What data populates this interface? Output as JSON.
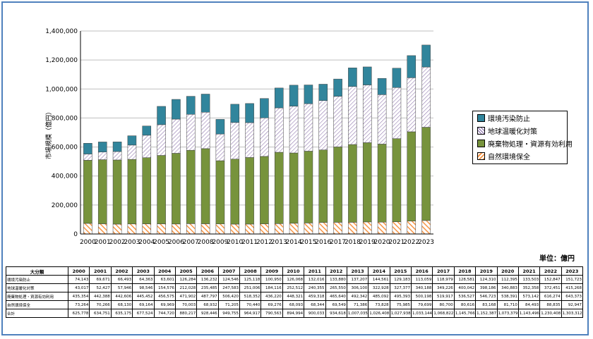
{
  "chart_data": {
    "type": "bar",
    "stacked": true,
    "ylabel": "市場規模（億円）",
    "ylim": [
      0,
      1400000
    ],
    "yticks": [
      "0",
      "200,000",
      "400,000",
      "600,000",
      "800,000",
      "1,000,000",
      "1,200,000",
      "1,400,000"
    ],
    "grid": true,
    "legend_position": "right",
    "categories": [
      "2000",
      "2001",
      "2002",
      "2003",
      "2004",
      "2005",
      "2006",
      "2007",
      "2008",
      "2009",
      "2010",
      "2011",
      "2012",
      "2013",
      "2014",
      "2015",
      "2016",
      "2017",
      "2018",
      "2019",
      "2020",
      "2021",
      "2022",
      "2023"
    ],
    "series": [
      {
        "name": "自然環境保全",
        "color": "#f79646",
        "pattern": "hatch",
        "values": [
          73264,
          70266,
          68130,
          69164,
          69969,
          70003,
          68932,
          71205,
          70440,
          69276,
          68093,
          68344,
          69549,
          71386,
          73828,
          75985,
          79699,
          80700,
          80616,
          83168,
          81710,
          84493,
          88835,
          92947
        ]
      },
      {
        "name": "廃棄物処理・資源有効利用",
        "color": "#77933c",
        "pattern": "solid",
        "values": [
          435354,
          442388,
          442606,
          445452,
          456575,
          471902,
          487797,
          506420,
          518352,
          436220,
          448321,
          459318,
          465640,
          492342,
          485092,
          495393,
          500198,
          519917,
          536527,
          546723,
          538391,
          573142,
          616274,
          643373
        ]
      },
      {
        "name": "地球温暖化対策",
        "color": "#ccc0da",
        "pattern": "diag",
        "values": [
          43017,
          52427,
          57946,
          98546,
          154576,
          212028,
          235485,
          247583,
          251006,
          184116,
          252512,
          240355,
          265550,
          306100,
          322928,
          327377,
          340188,
          349226,
          400042,
          398186,
          340883,
          352358,
          372451,
          415268
        ]
      },
      {
        "name": "環境汚染防止",
        "color": "#31859c",
        "pattern": "solid",
        "values": [
          74143,
          69671,
          66493,
          64363,
          63601,
          126284,
          136232,
          124546,
          125118,
          100950,
          126068,
          132016,
          133880,
          137207,
          144561,
          129183,
          113059,
          118979,
          128581,
          124310,
          112395,
          133503,
          152847,
          151723
        ]
      }
    ]
  },
  "legend": {
    "items": [
      {
        "label": "環境汚染防止",
        "color": "#31859c"
      },
      {
        "label": "地球温暖化対策",
        "color": "#ccc0da"
      },
      {
        "label": "廃棄物処理・資源有効利用",
        "color": "#77933c"
      },
      {
        "label": "自然環境保全",
        "color": "#f79646"
      }
    ]
  },
  "unit_label": "単位：億円",
  "table": {
    "header_label": "大分類",
    "years": [
      "2000",
      "2001",
      "2002",
      "2003",
      "2004",
      "2005",
      "2006",
      "2007",
      "2008",
      "2009",
      "2010",
      "2011",
      "2012",
      "2013",
      "2014",
      "2015",
      "2016",
      "2017",
      "2018",
      "2019",
      "2020",
      "2021",
      "2022",
      "2023"
    ],
    "rows": [
      {
        "label": "環境汚染防止",
        "cells": [
          "74,143",
          "69,671",
          "66,493",
          "64,363",
          "63,601",
          "126,284",
          "136,232",
          "124,546",
          "125,118",
          "100,950",
          "126,068",
          "132,016",
          "133,880",
          "137,207",
          "144,561",
          "129,183",
          "113,059",
          "118,979",
          "128,581",
          "124,310",
          "112,395",
          "133,503",
          "152,847",
          "151,723"
        ]
      },
      {
        "label": "地球温暖化対策",
        "cells": [
          "43,017",
          "52,427",
          "57,946",
          "98,546",
          "154,576",
          "212,028",
          "235,485",
          "247,583",
          "251,006",
          "184,116",
          "252,512",
          "240,355",
          "265,550",
          "306,100",
          "322,928",
          "327,377",
          "340,188",
          "349,226",
          "400,042",
          "398,186",
          "340,883",
          "352,358",
          "372,451",
          "415,268"
        ]
      },
      {
        "label": "廃棄物処理・資源有効利用",
        "cells": [
          "435,354",
          "442,388",
          "442,606",
          "445,452",
          "456,575",
          "471,902",
          "487,797",
          "506,420",
          "518,352",
          "436,220",
          "448,321",
          "459,318",
          "465,640",
          "492,342",
          "485,092",
          "495,393",
          "500,198",
          "519,917",
          "536,527",
          "546,723",
          "538,391",
          "573,142",
          "616,274",
          "643,373"
        ]
      },
      {
        "label": "自然環境保全",
        "cells": [
          "73,264",
          "70,266",
          "68,130",
          "69,164",
          "69,969",
          "70,003",
          "68,932",
          "71,205",
          "70,440",
          "69,276",
          "68,093",
          "68,344",
          "69,549",
          "71,386",
          "73,828",
          "75,985",
          "79,699",
          "80,700",
          "80,616",
          "83,168",
          "81,710",
          "84,493",
          "88,835",
          "92,947"
        ]
      },
      {
        "label": "合計",
        "cells": [
          "625,778",
          "634,751",
          "635,175",
          "677,524",
          "744,720",
          "880,217",
          "928,446",
          "949,755",
          "964,917",
          "790,563",
          "894,994",
          "900,033",
          "934,618",
          "1,007,035",
          "1,026,408",
          "1,027,938",
          "1,033,144",
          "1,068,822",
          "1,145,766",
          "1,152,387",
          "1,073,379",
          "1,143,496",
          "1,230,408",
          "1,303,312"
        ]
      }
    ]
  }
}
